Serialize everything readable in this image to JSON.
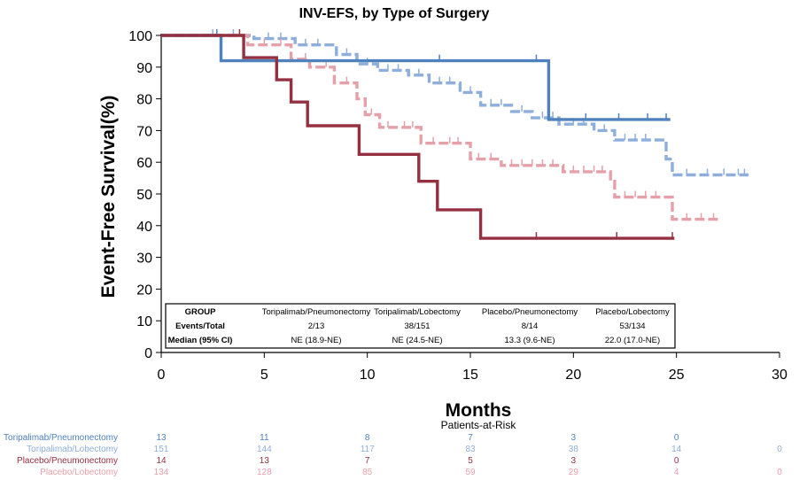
{
  "chart_data": {
    "type": "line",
    "title": "INV-EFS, by Type of Surgery",
    "xlabel": "Months",
    "ylabel": "Event-Free Survival(%)",
    "xlim": [
      0,
      30
    ],
    "ylim": [
      0,
      100
    ],
    "xticks": [
      0,
      5,
      10,
      15,
      20,
      25,
      30
    ],
    "yticks": [
      0,
      10,
      20,
      30,
      40,
      50,
      60,
      70,
      80,
      90,
      100
    ],
    "grid": false,
    "series": [
      {
        "name": "Toripalimab/Pneumonectomy",
        "color": "#4f81bd",
        "dash": "solid",
        "points": [
          [
            0,
            100
          ],
          [
            2.9,
            100
          ],
          [
            2.9,
            92
          ],
          [
            18.8,
            92
          ],
          [
            18.8,
            73.5
          ],
          [
            24.7,
            73.5
          ]
        ],
        "censor": [
          [
            2.7,
            100
          ],
          [
            13.5,
            92
          ],
          [
            18.2,
            92
          ],
          [
            20.6,
            73.5
          ],
          [
            22.2,
            73.5
          ],
          [
            23.6,
            73.5
          ],
          [
            24.5,
            73.5
          ]
        ]
      },
      {
        "name": "Toripalimab/Lobectomy",
        "color": "#8eaedb",
        "dash": "dashed",
        "points": [
          [
            0,
            100
          ],
          [
            4.5,
            100
          ],
          [
            4.5,
            99
          ],
          [
            6.5,
            99
          ],
          [
            6.5,
            97
          ],
          [
            8.5,
            97
          ],
          [
            8.5,
            94
          ],
          [
            9.5,
            94
          ],
          [
            9.5,
            91
          ],
          [
            10.5,
            91
          ],
          [
            10.5,
            89
          ],
          [
            12,
            89
          ],
          [
            12,
            87.5
          ],
          [
            13,
            87.5
          ],
          [
            13,
            85
          ],
          [
            14.5,
            85
          ],
          [
            14.5,
            82
          ],
          [
            15.5,
            82
          ],
          [
            15.5,
            78
          ],
          [
            17,
            78
          ],
          [
            17,
            76
          ],
          [
            18,
            76
          ],
          [
            18,
            74
          ],
          [
            19.3,
            74
          ],
          [
            19.3,
            72
          ],
          [
            21,
            72
          ],
          [
            21,
            70
          ],
          [
            22,
            70
          ],
          [
            22,
            67
          ],
          [
            24.5,
            67
          ],
          [
            24.5,
            61
          ],
          [
            24.8,
            61
          ],
          [
            24.8,
            56
          ],
          [
            28.5,
            56
          ]
        ],
        "censor": [
          [
            2.5,
            100
          ],
          [
            3.5,
            100
          ],
          [
            5.2,
            99
          ],
          [
            5.8,
            99
          ],
          [
            7,
            97
          ],
          [
            7.6,
            97
          ],
          [
            9,
            94
          ],
          [
            10,
            91
          ],
          [
            11,
            89
          ],
          [
            11.5,
            89
          ],
          [
            12.5,
            87.5
          ],
          [
            13.5,
            85
          ],
          [
            14,
            85
          ],
          [
            15,
            82
          ],
          [
            16,
            78
          ],
          [
            16.5,
            78
          ],
          [
            17.5,
            76
          ],
          [
            18.5,
            74
          ],
          [
            19,
            74
          ],
          [
            20,
            72
          ],
          [
            20.5,
            72
          ],
          [
            21.5,
            70
          ],
          [
            22.5,
            67
          ],
          [
            23,
            67
          ],
          [
            23.5,
            67
          ],
          [
            25.5,
            56
          ],
          [
            26.5,
            56
          ],
          [
            27.3,
            56
          ],
          [
            28,
            56
          ],
          [
            28.3,
            56
          ]
        ]
      },
      {
        "name": "Placebo/Pneumonectomy",
        "color": "#953041",
        "dash": "solid",
        "points": [
          [
            0,
            100
          ],
          [
            4,
            100
          ],
          [
            4,
            93
          ],
          [
            5.6,
            93
          ],
          [
            5.6,
            86
          ],
          [
            6.3,
            86
          ],
          [
            6.3,
            79
          ],
          [
            7.1,
            79
          ],
          [
            7.1,
            71.5
          ],
          [
            9.6,
            71.5
          ],
          [
            9.6,
            62.5
          ],
          [
            12.5,
            62.5
          ],
          [
            12.5,
            54
          ],
          [
            13.4,
            54
          ],
          [
            13.4,
            45
          ],
          [
            15.5,
            45
          ],
          [
            15.5,
            36
          ],
          [
            24.9,
            36
          ]
        ],
        "censor": [
          [
            3.8,
            100
          ],
          [
            18.2,
            36
          ],
          [
            22.1,
            36
          ],
          [
            24.8,
            36
          ]
        ]
      },
      {
        "name": "Placebo/Lobectomy",
        "color": "#e6a0aa",
        "dash": "dashed",
        "points": [
          [
            0,
            100
          ],
          [
            4.2,
            100
          ],
          [
            4.2,
            97
          ],
          [
            6.3,
            97
          ],
          [
            6.3,
            92.5
          ],
          [
            7.2,
            92.5
          ],
          [
            7.2,
            90
          ],
          [
            8.4,
            90
          ],
          [
            8.4,
            85
          ],
          [
            9.5,
            85
          ],
          [
            9.5,
            80
          ],
          [
            9.9,
            80
          ],
          [
            9.9,
            75
          ],
          [
            10.6,
            75
          ],
          [
            10.6,
            71
          ],
          [
            12.6,
            71
          ],
          [
            12.6,
            66
          ],
          [
            15,
            66
          ],
          [
            15,
            61
          ],
          [
            16.5,
            61
          ],
          [
            16.5,
            59
          ],
          [
            19.5,
            59
          ],
          [
            19.5,
            57
          ],
          [
            21.8,
            57
          ],
          [
            21.8,
            54
          ],
          [
            22,
            54
          ],
          [
            22,
            49
          ],
          [
            24.8,
            49
          ],
          [
            24.8,
            42
          ],
          [
            27.1,
            42
          ]
        ],
        "censor": [
          [
            5,
            97
          ],
          [
            5.8,
            97
          ],
          [
            7,
            92.5
          ],
          [
            8,
            90
          ],
          [
            9,
            85
          ],
          [
            10.2,
            75
          ],
          [
            11,
            71
          ],
          [
            11.8,
            71
          ],
          [
            12.2,
            71
          ],
          [
            13.2,
            66
          ],
          [
            14,
            66
          ],
          [
            14.4,
            66
          ],
          [
            15.4,
            61
          ],
          [
            16,
            61
          ],
          [
            17,
            59
          ],
          [
            17.5,
            59
          ],
          [
            18,
            59
          ],
          [
            18.5,
            59
          ],
          [
            19,
            59
          ],
          [
            20,
            57
          ],
          [
            20.5,
            57
          ],
          [
            21,
            57
          ],
          [
            21.4,
            57
          ],
          [
            22.5,
            49
          ],
          [
            23,
            49
          ],
          [
            23.5,
            49
          ],
          [
            24,
            49
          ],
          [
            25.5,
            42
          ],
          [
            26.2,
            42
          ],
          [
            26.8,
            42
          ]
        ]
      }
    ]
  },
  "table": {
    "headers": [
      "GROUP",
      "Toripalimab/Pneumonectomy",
      "Toripalimab/Lobectomy",
      "Placebo/Pneumonectomy",
      "Placebo/Lobectomy"
    ],
    "rows": [
      {
        "label": "Events/Total",
        "values": [
          "2/13",
          "38/151",
          "8/14",
          "53/134"
        ]
      },
      {
        "label": "Median (95% CI)",
        "values": [
          "NE (18.9-NE)",
          "NE (24.5-NE)",
          "13.3 (9.6-NE)",
          "22.0 (17.0-NE)"
        ]
      }
    ]
  },
  "risk_table": {
    "title": "Patients-at-Risk",
    "time_points": [
      0,
      5,
      10,
      15,
      20,
      25,
      30
    ],
    "rows": [
      {
        "name": "Toripalimab/Pneumonectomy",
        "color": "#4f81bd",
        "values": [
          "13",
          "11",
          "8",
          "7",
          "3",
          "0",
          ""
        ]
      },
      {
        "name": "Toripalimab/Lobectomy",
        "color": "#8eaedb",
        "values": [
          "151",
          "144",
          "117",
          "83",
          "38",
          "14",
          "0"
        ]
      },
      {
        "name": "Placebo/Pneumonectomy",
        "color": "#953041",
        "values": [
          "14",
          "13",
          "7",
          "5",
          "3",
          "0",
          ""
        ]
      },
      {
        "name": "Placebo/Lobectomy",
        "color": "#e6a0aa",
        "values": [
          "134",
          "128",
          "85",
          "59",
          "29",
          "4",
          "0"
        ]
      }
    ]
  }
}
